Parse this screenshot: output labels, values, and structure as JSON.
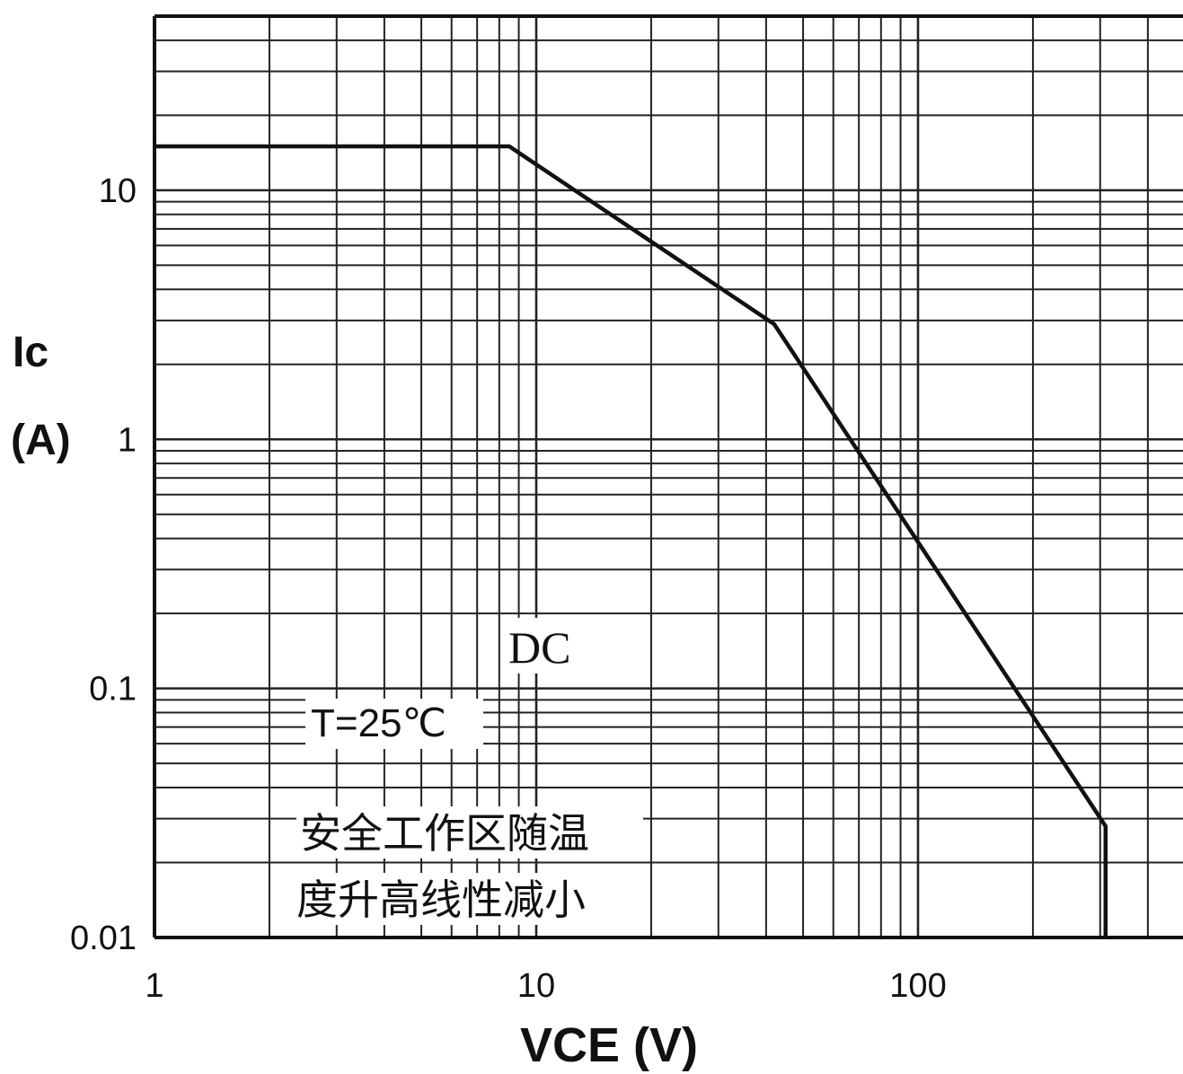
{
  "chart_data": {
    "type": "line",
    "title": "",
    "xlabel": "VCE (V)",
    "ylabel_line1": "Ic",
    "ylabel_line2": "(A)",
    "x_scale": "log",
    "y_scale": "log",
    "xlim": [
      1,
      700
    ],
    "ylim": [
      0.01,
      50
    ],
    "x_ticks": [
      {
        "value": 1,
        "label": "1"
      },
      {
        "value": 10,
        "label": "10"
      },
      {
        "value": 100,
        "label": "100"
      }
    ],
    "y_ticks": [
      {
        "value": 10,
        "label": "10"
      },
      {
        "value": 1,
        "label": "1"
      },
      {
        "value": 0.1,
        "label": "0.1"
      },
      {
        "value": 0.01,
        "label": "0.01"
      }
    ],
    "grid": true,
    "series": [
      {
        "name": "",
        "x": [
          1,
          8.5,
          42,
          310,
          310
        ],
        "y": [
          15,
          15,
          2.9,
          0.028,
          0.01
        ]
      }
    ],
    "annotations": {
      "mode": "DC",
      "temperature": "T=25℃",
      "note_line1": "安全工作区随温",
      "note_line2": "度升高线性减小"
    },
    "colors": {
      "line": "#111111",
      "grid": "#222222",
      "background": "#ffffff"
    }
  }
}
